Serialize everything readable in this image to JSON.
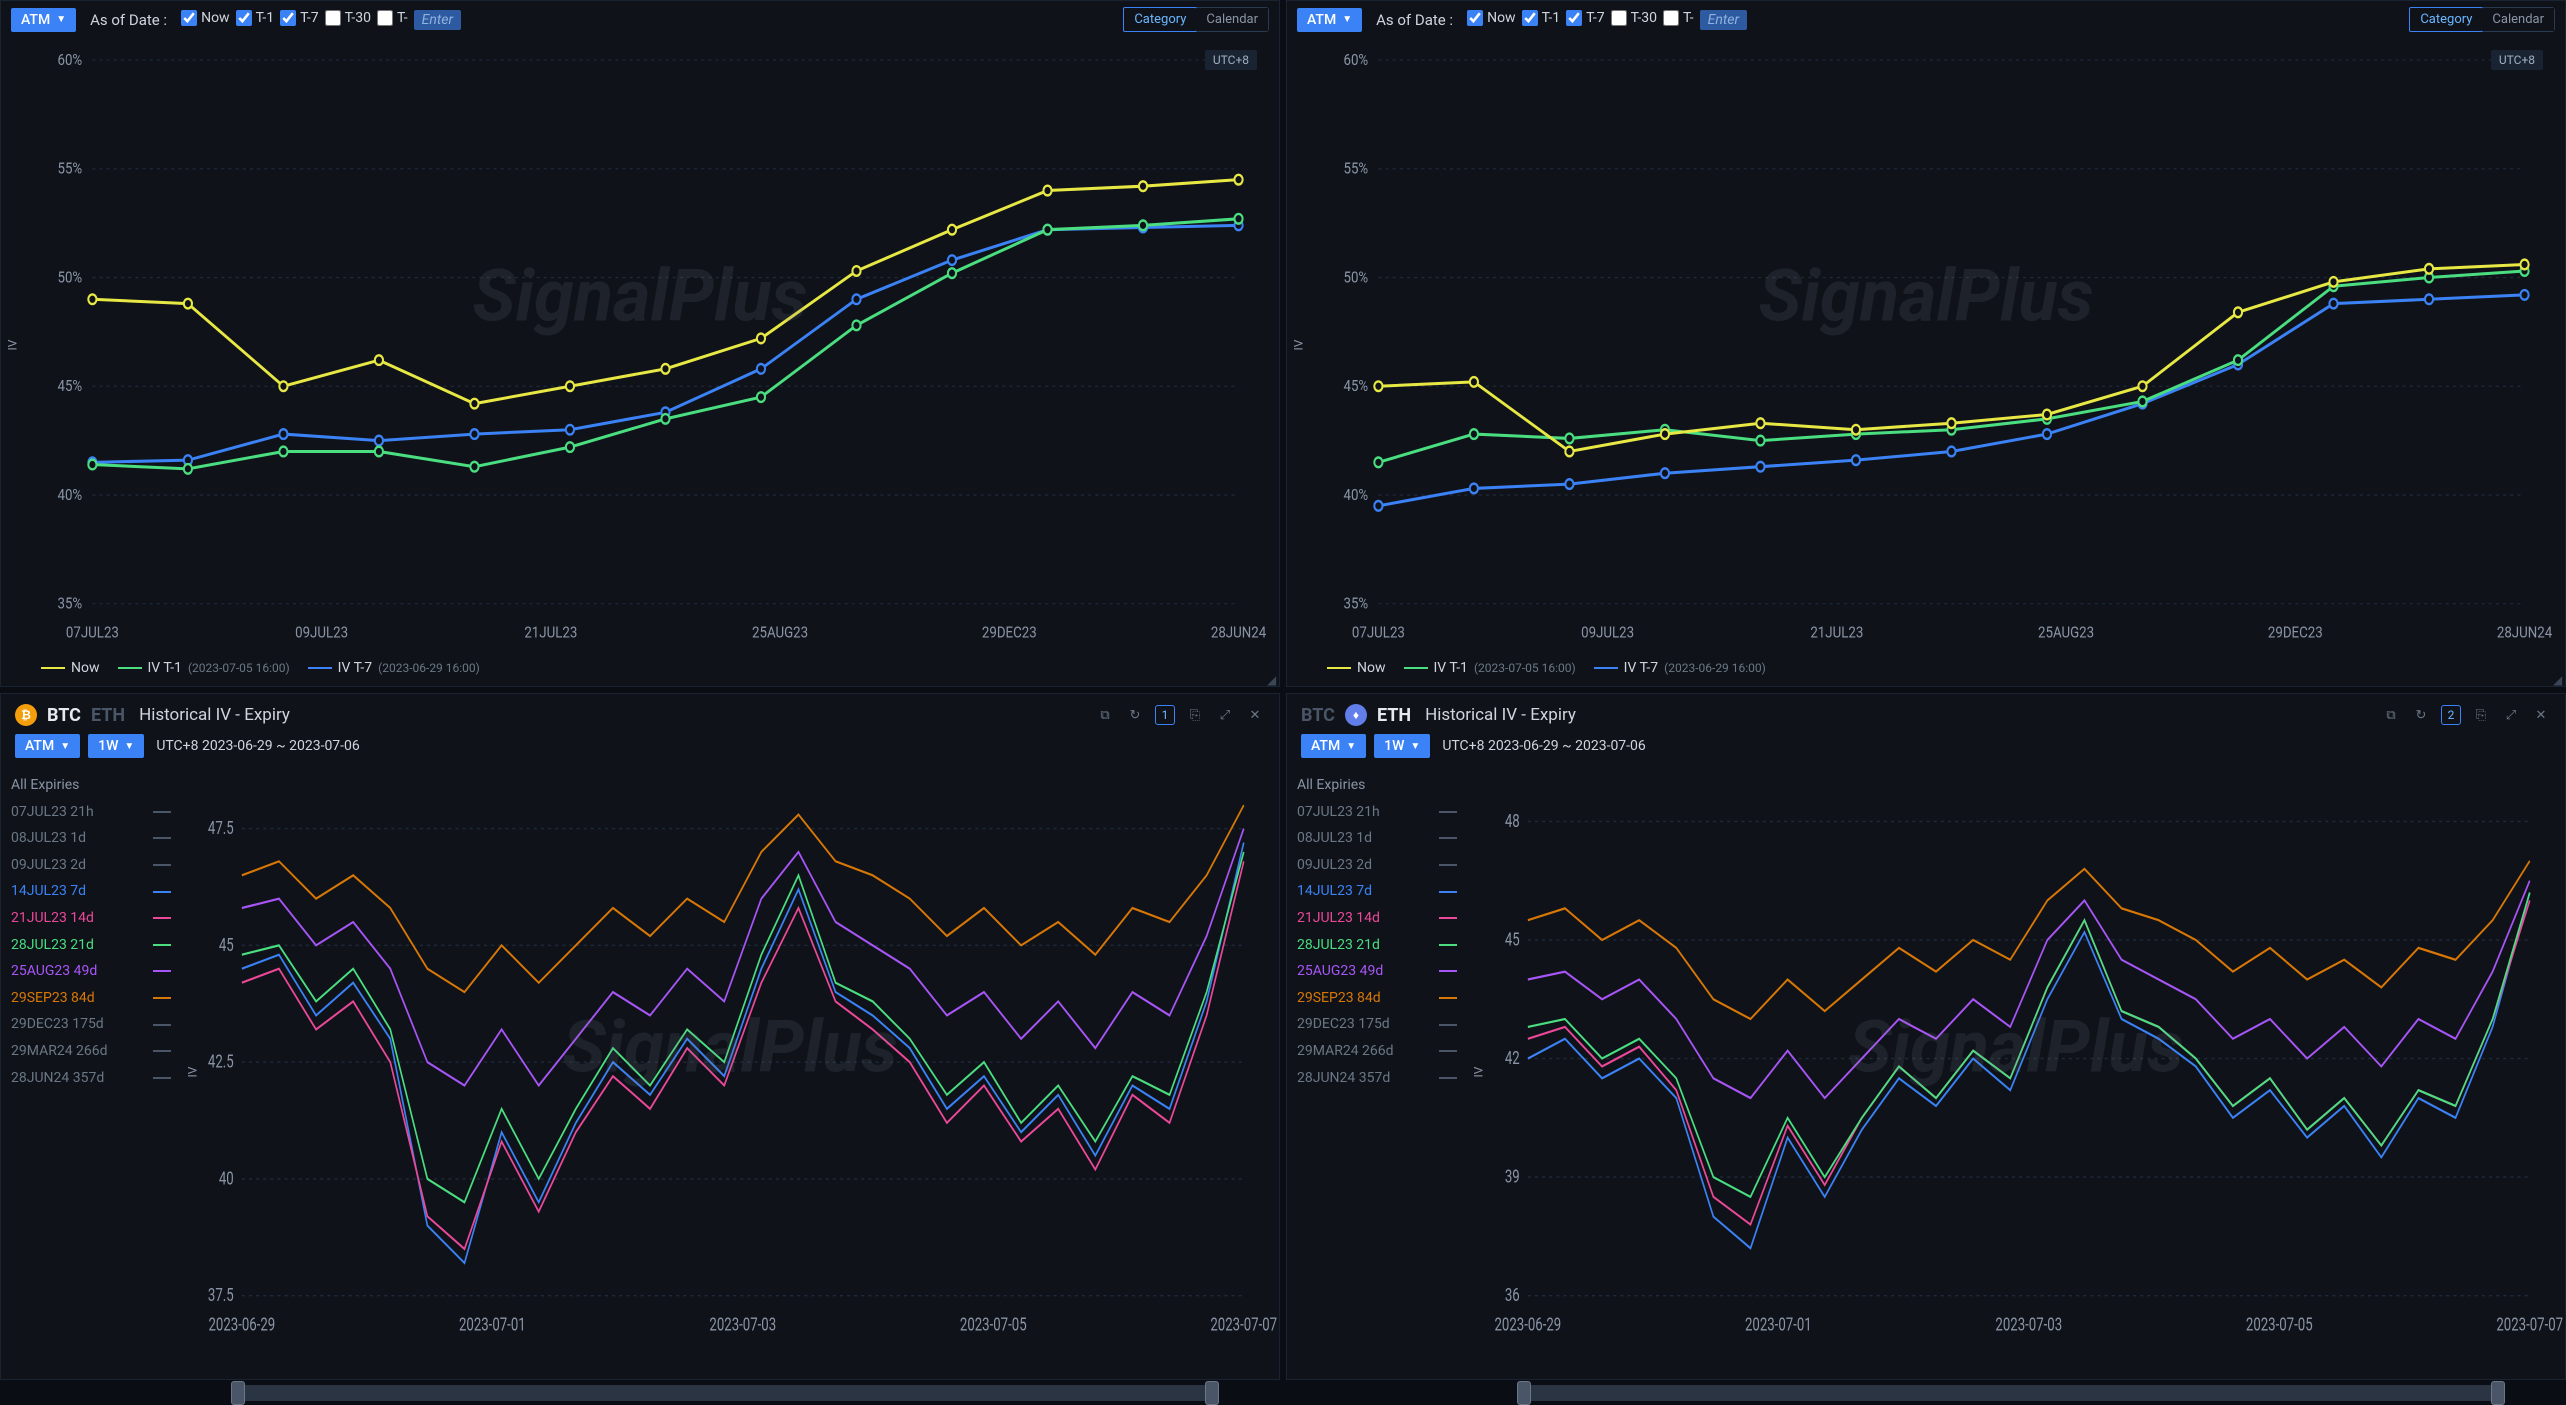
{
  "watermark": "SignalPlus",
  "colors": {
    "bg": "#0f1319",
    "grid": "#1e2a3a",
    "axis": "#8a94a6",
    "now": "#e8e845",
    "t1": "#4ade80",
    "t7": "#3b82f6",
    "btc_badge": "#f59e0b",
    "eth_badge": "#627eea"
  },
  "top": {
    "dropdown": "ATM",
    "asof_label": "As of Date :",
    "checks": [
      {
        "label": "Now",
        "checked": true
      },
      {
        "label": "T-1",
        "checked": true
      },
      {
        "label": "T-7",
        "checked": true
      },
      {
        "label": "T-30",
        "checked": false
      },
      {
        "label": "T-",
        "checked": false
      }
    ],
    "enter_placeholder": "Enter",
    "toggle": {
      "a": "Category",
      "b": "Calendar",
      "active": "a"
    },
    "tz_badge": "UTC+8",
    "ylabel": "IV",
    "x_ticks": [
      "07JUL23",
      "09JUL23",
      "21JUL23",
      "25AUG23",
      "29DEC23",
      "28JUN24"
    ],
    "y_ticks": [
      "35%",
      "40%",
      "45%",
      "50%",
      "55%",
      "60%"
    ],
    "legend": [
      {
        "name": "Now",
        "color": "#e8e845",
        "sub": ""
      },
      {
        "name": "IV T-1",
        "color": "#4ade80",
        "sub": "(2023-07-05 16:00)"
      },
      {
        "name": "IV T-7",
        "color": "#3b82f6",
        "sub": "(2023-06-29 16:00)"
      }
    ],
    "left_series": {
      "now": [
        49,
        48.8,
        45,
        46.2,
        44.2,
        45,
        45.8,
        47.2,
        50.3,
        52.2,
        54,
        54.2,
        54.5
      ],
      "t1": [
        41.4,
        41.2,
        42,
        42,
        41.3,
        42.2,
        43.5,
        44.5,
        47.8,
        50.2,
        52.2,
        52.4,
        52.7
      ],
      "t7": [
        41.5,
        41.6,
        42.8,
        42.5,
        42.8,
        43,
        43.8,
        45.8,
        49,
        50.8,
        52.2,
        52.3,
        52.4
      ]
    },
    "right_series": {
      "now": [
        45,
        45.2,
        42,
        42.8,
        43.3,
        43,
        43.3,
        43.7,
        45,
        48.4,
        49.8,
        50.4,
        50.6
      ],
      "t1": [
        41.5,
        42.8,
        42.6,
        43,
        42.5,
        42.8,
        43,
        43.5,
        44.3,
        46.2,
        49.6,
        50.0,
        50.3
      ],
      "t7": [
        39.5,
        40.3,
        40.5,
        41,
        41.3,
        41.6,
        42,
        42.8,
        44.2,
        46,
        48.8,
        49.0,
        49.2
      ]
    }
  },
  "bottom": {
    "title": "Historical IV - Expiry",
    "dropdown_atm": "ATM",
    "dropdown_range": "1W",
    "daterange": "UTC+8 2023-06-29 ~ 2023-07-06",
    "left_count": "1",
    "right_count": "2",
    "ylabel": "IV",
    "btc": "BTC",
    "eth": "ETH",
    "expiries_header": "All Expiries",
    "expiries": [
      {
        "label": "07JUL23 21h",
        "color": "#4a5568",
        "active": false
      },
      {
        "label": "08JUL23 1d",
        "color": "#4a5568",
        "active": false
      },
      {
        "label": "09JUL23 2d",
        "color": "#4a5568",
        "active": false
      },
      {
        "label": "14JUL23 7d",
        "color": "#3b82f6",
        "active": true
      },
      {
        "label": "21JUL23 14d",
        "color": "#ec4899",
        "active": true
      },
      {
        "label": "28JUL23 21d",
        "color": "#4ade80",
        "active": true
      },
      {
        "label": "25AUG23 49d",
        "color": "#a855f7",
        "active": true
      },
      {
        "label": "29SEP23 84d",
        "color": "#d97706",
        "active": true
      },
      {
        "label": "29DEC23 175d",
        "color": "#4a5568",
        "active": false
      },
      {
        "label": "29MAR24 266d",
        "color": "#4a5568",
        "active": false
      },
      {
        "label": "28JUN24 357d",
        "color": "#4a5568",
        "active": false
      }
    ],
    "left_axis": {
      "x_ticks": [
        "2023-06-29",
        "2023-07-01",
        "2023-07-03",
        "2023-07-05",
        "2023-07-07"
      ],
      "y_ticks": [
        "37.5",
        "40",
        "42.5",
        "45",
        "47.5"
      ],
      "ymin": 37.5,
      "ymax": 48.5
    },
    "right_axis": {
      "x_ticks": [
        "2023-06-29",
        "2023-07-01",
        "2023-07-03",
        "2023-07-05",
        "2023-07-07"
      ],
      "y_ticks": [
        "36",
        "39",
        "42",
        "45",
        "48"
      ],
      "ymin": 36,
      "ymax": 49
    },
    "left_series": {
      "blue": [
        44.5,
        44.8,
        43.5,
        44.2,
        43,
        39,
        38.2,
        41,
        39.5,
        41.2,
        42.5,
        41.8,
        43,
        42.2,
        44.5,
        46.2,
        44,
        43.5,
        42.8,
        41.5,
        42.2,
        41,
        41.8,
        40.5,
        42,
        41.5,
        43.8,
        47.2
      ],
      "pink": [
        44.2,
        44.5,
        43.2,
        43.8,
        42.5,
        39.2,
        38.5,
        40.8,
        39.3,
        41,
        42.2,
        41.5,
        42.8,
        42,
        44.2,
        45.8,
        43.8,
        43.2,
        42.5,
        41.2,
        42,
        40.8,
        41.5,
        40.2,
        41.8,
        41.2,
        43.5,
        46.8
      ],
      "green": [
        44.8,
        45,
        43.8,
        44.5,
        43.2,
        40,
        39.5,
        41.5,
        40,
        41.5,
        42.8,
        42,
        43.2,
        42.5,
        44.8,
        46.5,
        44.2,
        43.8,
        43,
        41.8,
        42.5,
        41.2,
        42,
        40.8,
        42.2,
        41.8,
        44,
        47
      ],
      "purple": [
        45.8,
        46,
        45,
        45.5,
        44.5,
        42.5,
        42,
        43.2,
        42,
        43,
        44,
        43.5,
        44.5,
        43.8,
        46,
        47,
        45.5,
        45,
        44.5,
        43.5,
        44,
        43,
        43.8,
        42.8,
        44,
        43.5,
        45.2,
        47.5
      ],
      "orange": [
        46.5,
        46.8,
        46,
        46.5,
        45.8,
        44.5,
        44,
        45,
        44.2,
        45,
        45.8,
        45.2,
        46,
        45.5,
        47,
        47.8,
        46.8,
        46.5,
        46,
        45.2,
        45.8,
        45,
        45.5,
        44.8,
        45.8,
        45.5,
        46.5,
        48
      ]
    },
    "right_series": {
      "blue": [
        42,
        42.5,
        41.5,
        42,
        41,
        38,
        37.2,
        40,
        38.5,
        40.2,
        41.5,
        40.8,
        42,
        41.2,
        43.5,
        45.2,
        43,
        42.5,
        41.8,
        40.5,
        41.2,
        40,
        40.8,
        39.5,
        41,
        40.5,
        42.8,
        46.2
      ],
      "pink": [
        42.5,
        42.8,
        41.8,
        42.3,
        41.2,
        38.5,
        37.8,
        40.3,
        38.8,
        40.5,
        41.8,
        41,
        42.2,
        41.5,
        43.8,
        45.5,
        43.2,
        42.8,
        42,
        40.8,
        41.5,
        40.2,
        41,
        39.8,
        41.2,
        40.8,
        43,
        46
      ],
      "green": [
        42.8,
        43,
        42,
        42.5,
        41.5,
        39,
        38.5,
        40.5,
        39,
        40.5,
        41.8,
        41,
        42.2,
        41.5,
        43.8,
        45.5,
        43.2,
        42.8,
        42,
        40.8,
        41.5,
        40.2,
        41,
        39.8,
        41.2,
        40.8,
        43,
        46.2
      ],
      "purple": [
        44,
        44.2,
        43.5,
        44,
        43,
        41.5,
        41,
        42.2,
        41,
        42,
        43,
        42.5,
        43.5,
        42.8,
        45,
        46,
        44.5,
        44,
        43.5,
        42.5,
        43,
        42,
        42.8,
        41.8,
        43,
        42.5,
        44.2,
        46.5
      ],
      "orange": [
        45.5,
        45.8,
        45,
        45.5,
        44.8,
        43.5,
        43,
        44,
        43.2,
        44,
        44.8,
        44.2,
        45,
        44.5,
        46,
        46.8,
        45.8,
        45.5,
        45,
        44.2,
        44.8,
        44,
        44.5,
        43.8,
        44.8,
        44.5,
        45.5,
        47
      ]
    }
  }
}
